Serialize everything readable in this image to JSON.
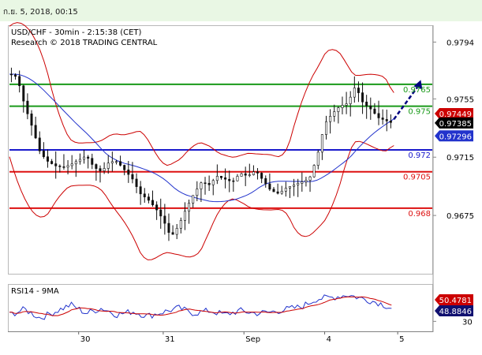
{
  "header": {
    "timestamp": "ก.ย. 5, 2018, 00:15"
  },
  "main_chart": {
    "title_line1": "USD/CHF - 30min - 2:15:38 (CET)",
    "title_line2": "Research © 2018 TRADING CENTRAL"
  },
  "rsi_panel": {
    "title": "RSI14 - 9MA"
  },
  "colors": {
    "resistance": "#1a9a1a",
    "pivot": "#1a1acc",
    "support": "#dd1111",
    "bollinger": "#cc0000",
    "ma": "#2233cc",
    "candle": "#111111",
    "arrow": "#000080",
    "price_badge": "#000000",
    "rsi_ma_badge": "#cc0000",
    "rsi_badge": "#101070",
    "header_bg": "#e9f7e4"
  },
  "chart_data": [
    {
      "type": "candlestick",
      "title": "USD/CHF - 30min - 2:15:38 (CET)",
      "x_tick_labels": [
        "30",
        "31",
        "Sep",
        "4",
        "5"
      ],
      "y_tick_labels": [
        "0.9794",
        "0.9755",
        "0.9715",
        "0.9675"
      ],
      "ylim": [
        0.9635,
        0.9805
      ],
      "levels": [
        {
          "label": "0.9765",
          "value": 0.9765,
          "kind": "resistance"
        },
        {
          "label": "0.975",
          "value": 0.975,
          "kind": "resistance"
        },
        {
          "label": "0.972",
          "value": 0.972,
          "kind": "pivot"
        },
        {
          "label": "0.9705",
          "value": 0.9705,
          "kind": "support"
        },
        {
          "label": "0.968",
          "value": 0.968,
          "kind": "support"
        }
      ],
      "price_badges": [
        {
          "label": "0.97449",
          "value": 0.97449,
          "kind": "bollinger"
        },
        {
          "label": "0.97385",
          "value": 0.97385,
          "kind": "price"
        },
        {
          "label": "0.97296",
          "value": 0.97296,
          "kind": "ma"
        }
      ],
      "close_path": [
        [
          0,
          0.9772
        ],
        [
          2,
          0.977
        ],
        [
          4,
          0.975
        ],
        [
          6,
          0.9735
        ],
        [
          8,
          0.9718
        ],
        [
          10,
          0.9712
        ],
        [
          12,
          0.9709
        ],
        [
          14,
          0.9708
        ],
        [
          16,
          0.971
        ],
        [
          18,
          0.9713
        ],
        [
          20,
          0.9716
        ],
        [
          22,
          0.9708
        ],
        [
          24,
          0.9705
        ],
        [
          26,
          0.9712
        ],
        [
          28,
          0.9712
        ],
        [
          30,
          0.9706
        ],
        [
          32,
          0.97
        ],
        [
          34,
          0.969
        ],
        [
          36,
          0.9686
        ],
        [
          38,
          0.968
        ],
        [
          40,
          0.9672
        ],
        [
          42,
          0.966
        ],
        [
          44,
          0.9668
        ],
        [
          46,
          0.968
        ],
        [
          48,
          0.969
        ],
        [
          50,
          0.9698
        ],
        [
          52,
          0.9696
        ],
        [
          54,
          0.9702
        ],
        [
          56,
          0.97
        ],
        [
          58,
          0.9698
        ],
        [
          60,
          0.9704
        ],
        [
          62,
          0.9702
        ],
        [
          64,
          0.9706
        ],
        [
          66,
          0.9699
        ],
        [
          68,
          0.9692
        ],
        [
          70,
          0.969
        ],
        [
          72,
          0.9694
        ],
        [
          74,
          0.9696
        ],
        [
          76,
          0.9698
        ],
        [
          78,
          0.97
        ],
        [
          80,
          0.9715
        ],
        [
          82,
          0.9738
        ],
        [
          84,
          0.9745
        ],
        [
          86,
          0.975
        ],
        [
          88,
          0.9752
        ],
        [
          90,
          0.9764
        ],
        [
          92,
          0.9752
        ],
        [
          94,
          0.9748
        ],
        [
          96,
          0.9742
        ],
        [
          98,
          0.974
        ],
        [
          100,
          0.9738
        ]
      ],
      "forecast_arrow": {
        "from": [
          100,
          0.9741
        ],
        "to": [
          107,
          0.9768
        ]
      }
    },
    {
      "type": "line",
      "title": "RSI14 - 9MA",
      "y_tick_labels": [
        "30"
      ],
      "ylim": [
        15,
        85
      ],
      "badges": [
        {
          "label": "50.4781",
          "value": 50.4781,
          "kind": "rsi_ma"
        },
        {
          "label": "48.8846",
          "value": 48.8846,
          "kind": "rsi"
        }
      ],
      "rsi_path": [
        [
          0,
          40
        ],
        [
          4,
          48
        ],
        [
          8,
          35
        ],
        [
          12,
          45
        ],
        [
          16,
          55
        ],
        [
          20,
          42
        ],
        [
          24,
          50
        ],
        [
          28,
          40
        ],
        [
          32,
          45
        ],
        [
          36,
          38
        ],
        [
          40,
          44
        ],
        [
          44,
          50
        ],
        [
          48,
          42
        ],
        [
          52,
          46
        ],
        [
          56,
          40
        ],
        [
          60,
          46
        ],
        [
          64,
          42
        ],
        [
          68,
          44
        ],
        [
          72,
          48
        ],
        [
          76,
          52
        ],
        [
          80,
          64
        ],
        [
          84,
          66
        ],
        [
          88,
          70
        ],
        [
          92,
          64
        ],
        [
          96,
          58
        ],
        [
          100,
          48.88
        ]
      ]
    }
  ]
}
